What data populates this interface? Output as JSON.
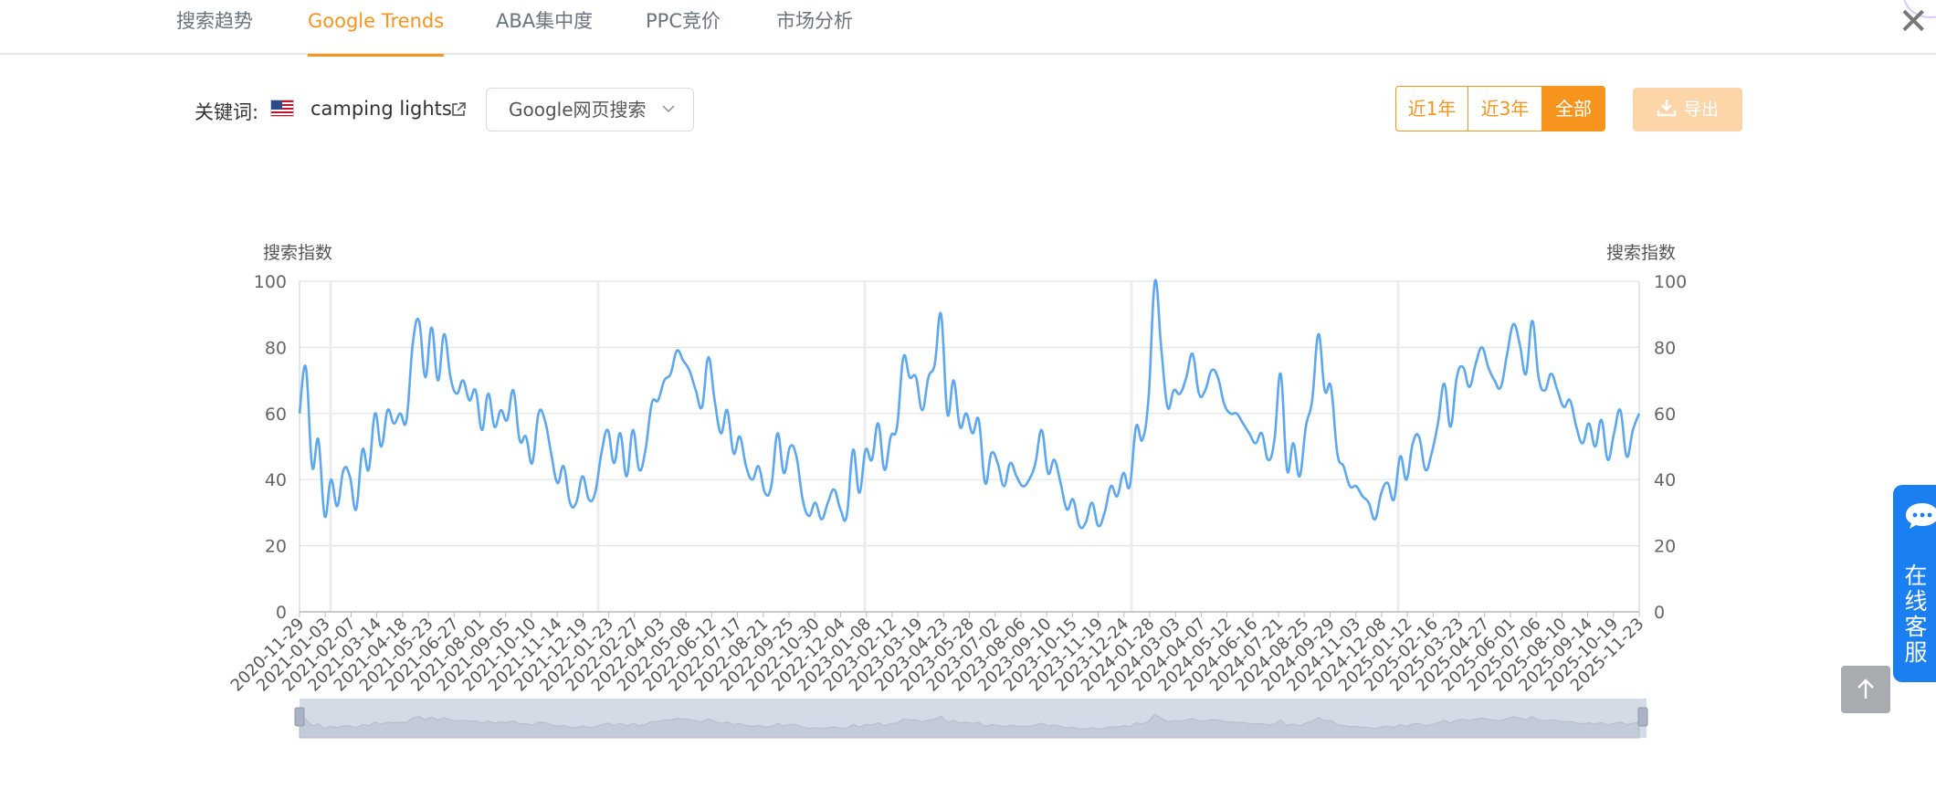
{
  "tabs": [
    {
      "label": "搜索趋势",
      "active": false
    },
    {
      "label": "Google Trends",
      "active": true
    },
    {
      "label": "ABA集中度",
      "active": false
    },
    {
      "label": "PPC竞价",
      "active": false
    },
    {
      "label": "市场分析",
      "active": false
    }
  ],
  "close_label": "✕",
  "keyword": {
    "label": "关键词:",
    "value": "camping lights",
    "flag_icon": "us-flag-icon"
  },
  "search_type": {
    "selected": "Google网页搜索"
  },
  "ranges": {
    "r1": "近1年",
    "r3": "近3年",
    "all": "全部",
    "active": "all"
  },
  "export_label": "导出",
  "accent_color": "#f7941d",
  "line_color": "#5ba8f0",
  "chat": {
    "label": "在线客服"
  },
  "chart_data": {
    "type": "line",
    "ylabel_left": "搜索指数",
    "ylabel_right": "搜索指数",
    "ylim": [
      0,
      100
    ],
    "yticks": [
      0,
      20,
      40,
      60,
      80,
      100
    ],
    "grid": true,
    "x_ticks": [
      "2020-11-29",
      "2021-01-03",
      "2021-02-07",
      "2021-03-14",
      "2021-04-18",
      "2021-05-23",
      "2021-06-27",
      "2021-08-01",
      "2021-09-05",
      "2021-10-10",
      "2021-11-14",
      "2021-12-19",
      "2022-01-23",
      "2022-02-27",
      "2022-04-03",
      "2022-05-08",
      "2022-06-12",
      "2022-07-17",
      "2022-08-21",
      "2022-09-25",
      "2022-10-30",
      "2022-12-04",
      "2023-01-08",
      "2023-02-12",
      "2023-03-19",
      "2023-04-23",
      "2023-05-28",
      "2023-07-02",
      "2023-08-06",
      "2023-09-10",
      "2023-10-15",
      "2023-11-19",
      "2023-12-24",
      "2024-01-28",
      "2024-03-03",
      "2024-04-07",
      "2024-05-12",
      "2024-06-16",
      "2024-07-21",
      "2024-08-25",
      "2024-09-29",
      "2024-11-03",
      "2024-12-08",
      "2025-01-12",
      "2025-02-16",
      "2025-03-23",
      "2025-04-27",
      "2025-06-01",
      "2025-07-06",
      "2025-08-10",
      "2025-09-14",
      "2025-10-19",
      "2025-11-23"
    ],
    "series": [
      {
        "values": [
          60,
          74,
          44,
          52,
          29,
          40,
          32,
          43,
          41,
          31,
          49,
          43,
          60,
          50,
          61,
          57,
          60,
          58,
          81,
          88,
          71,
          86,
          70,
          84,
          71,
          66,
          70,
          64,
          67,
          55,
          66,
          56,
          61,
          58,
          67,
          52,
          53,
          45,
          60,
          58,
          48,
          39,
          44,
          33,
          33,
          41,
          34,
          36,
          48,
          55,
          45,
          54,
          41,
          55,
          43,
          49,
          63,
          64,
          70,
          72,
          79,
          76,
          73,
          67,
          62,
          77,
          64,
          54,
          61,
          48,
          53,
          44,
          40,
          44,
          36,
          38,
          54,
          42,
          50,
          47,
          34,
          29,
          33,
          28,
          33,
          37,
          31,
          29,
          49,
          36,
          49,
          46,
          57,
          43,
          53,
          56,
          77,
          71,
          71,
          61,
          71,
          75,
          90,
          60,
          70,
          56,
          60,
          54,
          58,
          39,
          48,
          45,
          38,
          45,
          41,
          38,
          40,
          45,
          55,
          42,
          46,
          39,
          31,
          34,
          26,
          27,
          33,
          26,
          30,
          38,
          35,
          42,
          38,
          56,
          52,
          65,
          100,
          80,
          62,
          67,
          66,
          71,
          78,
          66,
          67,
          73,
          71,
          63,
          60,
          60,
          57,
          54,
          51,
          54,
          46,
          52,
          72,
          43,
          51,
          41,
          56,
          64,
          84,
          67,
          68,
          48,
          44,
          38,
          38,
          35,
          33,
          28,
          36,
          39,
          34,
          47,
          40,
          51,
          53,
          43,
          48,
          57,
          69,
          56,
          71,
          74,
          68,
          75,
          80,
          74,
          70,
          68,
          78,
          87,
          81,
          72,
          88,
          71,
          67,
          72,
          67,
          62,
          64,
          56,
          51,
          57,
          50,
          58,
          46,
          54,
          61,
          47,
          55,
          60
        ]
      }
    ]
  }
}
